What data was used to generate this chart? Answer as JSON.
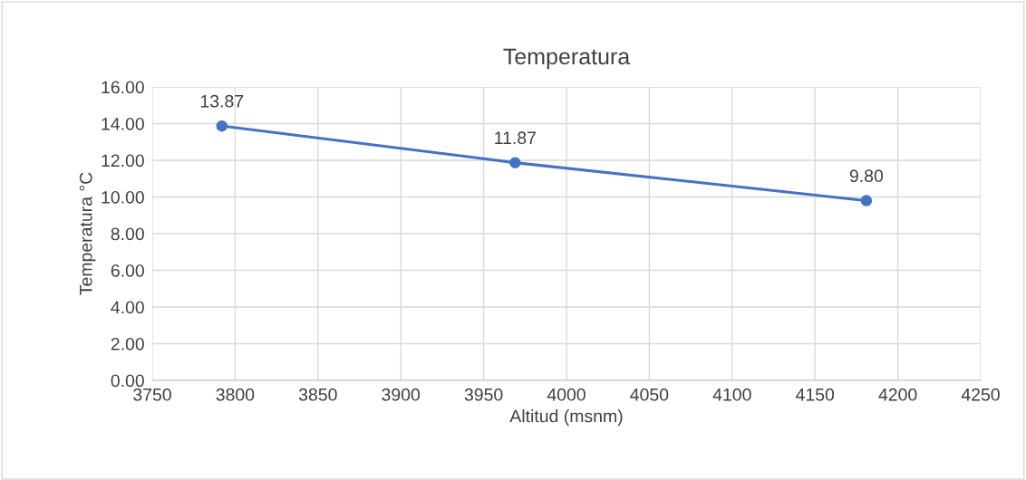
{
  "chart_data": {
    "type": "line",
    "title": "Temperatura",
    "xlabel": "Altitud (msnm)",
    "ylabel": "Temperatura °C",
    "x": [
      3792,
      3969,
      4181
    ],
    "series": [
      {
        "color": "#4472c4",
        "values": [
          13.87,
          11.87,
          9.8
        ],
        "value_labels": [
          "13.87",
          "11.87",
          "9.80"
        ]
      }
    ],
    "xlim": [
      3750,
      4250
    ],
    "xticks": [
      3750,
      3800,
      3850,
      3900,
      3950,
      4000,
      4050,
      4100,
      4150,
      4200,
      4250
    ],
    "ylim": [
      0,
      16
    ],
    "yticks": [
      {
        "value": 0,
        "label": "0.00"
      },
      {
        "value": 2,
        "label": "2.00"
      },
      {
        "value": 4,
        "label": "4.00"
      },
      {
        "value": 6,
        "label": "6.00"
      },
      {
        "value": 8,
        "label": "8.00"
      },
      {
        "value": 10,
        "label": "10.00"
      },
      {
        "value": 12,
        "label": "12.00"
      },
      {
        "value": 14,
        "label": "14.00"
      },
      {
        "value": 16,
        "label": "16.00"
      }
    ],
    "grid": true,
    "marker": "circle",
    "line_style": "solid"
  }
}
